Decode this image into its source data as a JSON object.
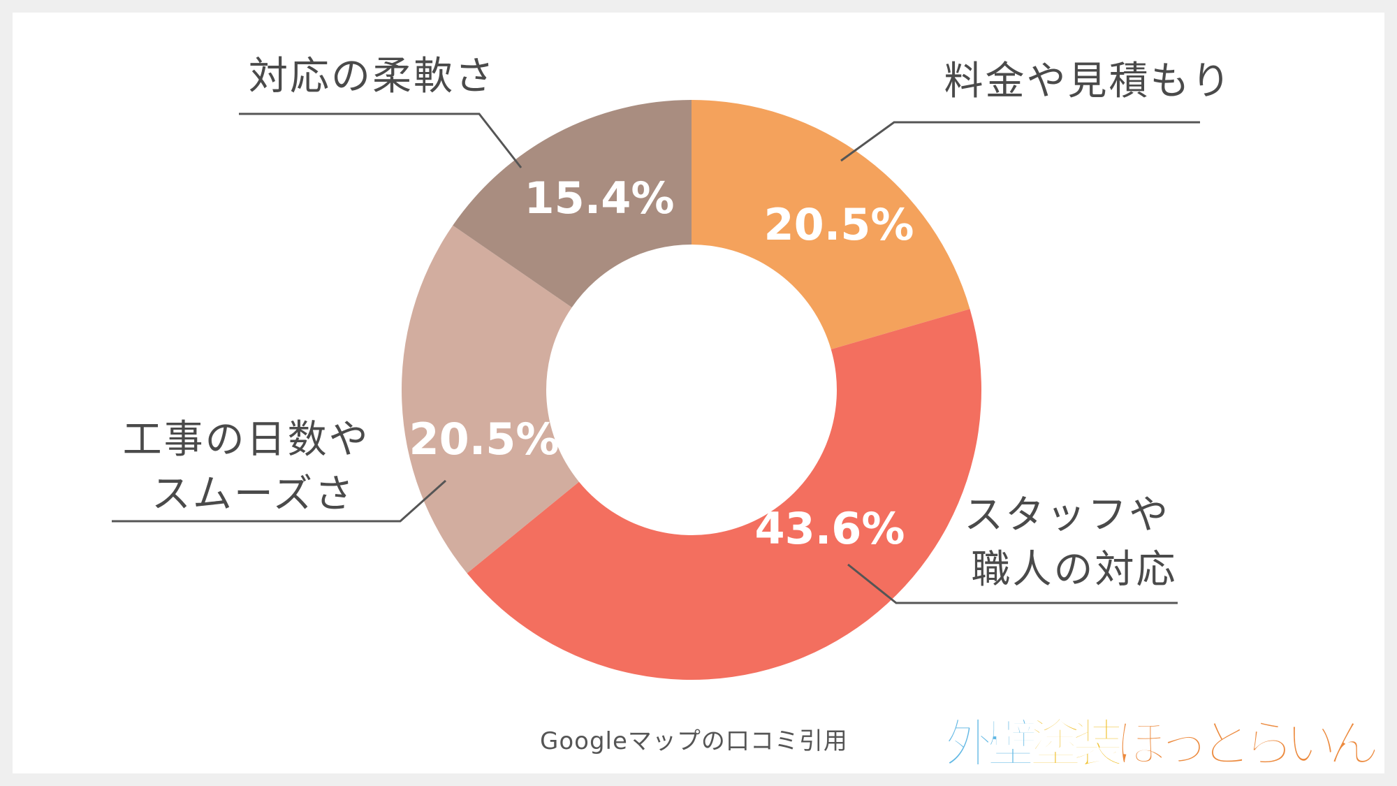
{
  "chart_data": {
    "type": "pie",
    "donut": true,
    "categories": [
      "料金や見積もり",
      "スタッフや職人の対応",
      "工事の日数やスムーズさ",
      "対応の柔軟さ"
    ],
    "values": [
      20.5,
      43.6,
      20.5,
      15.4
    ],
    "value_labels": [
      "20.5%",
      "43.6%",
      "20.5%",
      "15.4%"
    ],
    "colors": [
      "#f4a25c",
      "#f36f5f",
      "#d2ad9f",
      "#a98d80"
    ],
    "label_lines": [
      [
        "料金や見積もり"
      ],
      [
        "スタッフや",
        "職人の対応"
      ],
      [
        "工事の日数や",
        "スムーズさ"
      ],
      [
        "対応の柔軟さ"
      ]
    ],
    "start_angle_deg": 0,
    "direction": "clockwise"
  },
  "source_note": "Googleマップの口コミ引用",
  "logo": {
    "text": "外壁塗装ほっとらいん",
    "colors": [
      "#62b8e4",
      "#f0c232",
      "#ec8a3e"
    ]
  }
}
